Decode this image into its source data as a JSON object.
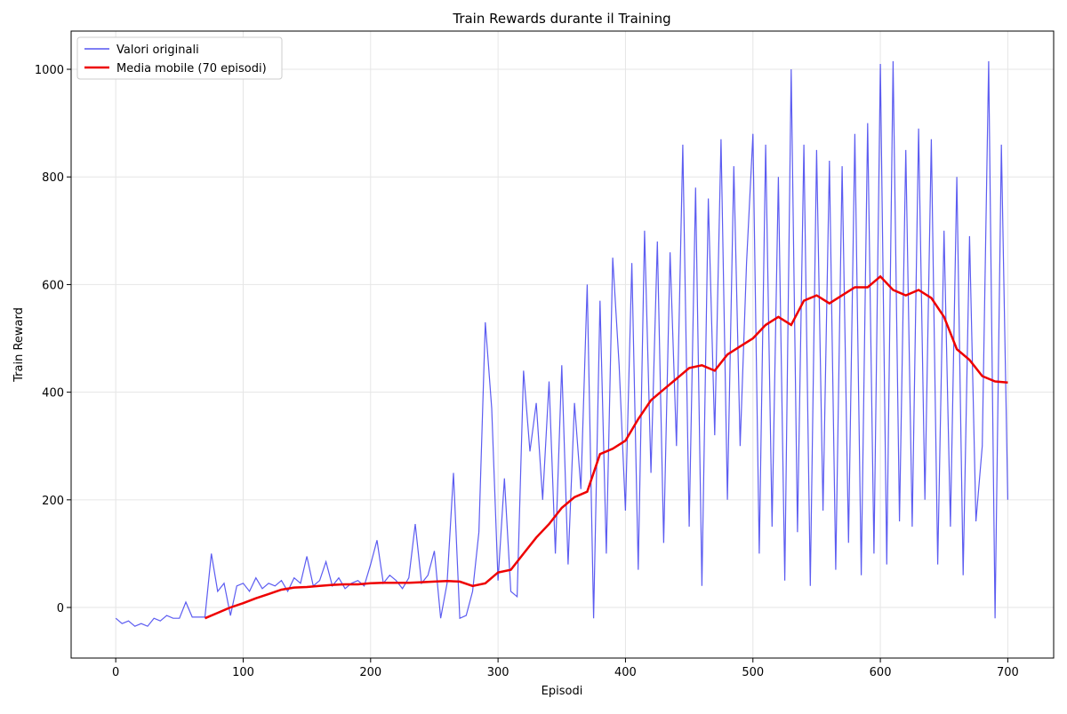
{
  "chart_data": {
    "type": "line",
    "title": "Train Rewards durante il Training",
    "xlabel": "Episodi",
    "ylabel": "Train Reward",
    "xlim": [
      -35,
      736
    ],
    "ylim": [
      -94,
      1071
    ],
    "xticks": [
      0,
      100,
      200,
      300,
      400,
      500,
      600,
      700
    ],
    "yticks": [
      0,
      200,
      400,
      600,
      800,
      1000
    ],
    "grid": true,
    "legend": "upper left",
    "series": [
      {
        "name": "Valori originali",
        "color": "#3333ee",
        "x": [
          0,
          5,
          10,
          15,
          20,
          25,
          30,
          35,
          40,
          45,
          50,
          55,
          60,
          65,
          70,
          75,
          80,
          85,
          90,
          95,
          100,
          105,
          110,
          115,
          120,
          125,
          130,
          135,
          140,
          145,
          150,
          155,
          160,
          165,
          170,
          175,
          180,
          185,
          190,
          195,
          200,
          205,
          210,
          215,
          220,
          225,
          230,
          235,
          240,
          245,
          250,
          255,
          260,
          265,
          270,
          275,
          280,
          285,
          290,
          295,
          300,
          305,
          310,
          315,
          320,
          325,
          330,
          335,
          340,
          345,
          350,
          355,
          360,
          365,
          370,
          375,
          380,
          385,
          390,
          395,
          400,
          405,
          410,
          415,
          420,
          425,
          430,
          435,
          440,
          445,
          450,
          455,
          460,
          465,
          470,
          475,
          480,
          485,
          490,
          495,
          500,
          505,
          510,
          515,
          520,
          525,
          530,
          535,
          540,
          545,
          550,
          555,
          560,
          565,
          570,
          575,
          580,
          585,
          590,
          595,
          600,
          605,
          610,
          615,
          620,
          625,
          630,
          635,
          640,
          645,
          650,
          655,
          660,
          665,
          670,
          675,
          680,
          685,
          690,
          695,
          700
        ],
        "values": [
          -20,
          -30,
          -25,
          -35,
          -30,
          -35,
          -20,
          -25,
          -15,
          -20,
          -20,
          10,
          -18,
          -18,
          -18,
          100,
          30,
          45,
          -15,
          40,
          45,
          30,
          55,
          35,
          45,
          40,
          50,
          30,
          55,
          45,
          95,
          40,
          50,
          85,
          40,
          55,
          35,
          45,
          50,
          40,
          80,
          125,
          45,
          60,
          50,
          35,
          55,
          155,
          45,
          60,
          105,
          -20,
          45,
          250,
          -20,
          -15,
          30,
          140,
          530,
          370,
          50,
          240,
          30,
          20,
          440,
          290,
          380,
          200,
          420,
          100,
          450,
          80,
          380,
          220,
          600,
          -20,
          570,
          100,
          650,
          450,
          180,
          640,
          70,
          700,
          250,
          680,
          120,
          660,
          300,
          860,
          150,
          780,
          40,
          760,
          320,
          870,
          200,
          820,
          300,
          640,
          880,
          100,
          860,
          150,
          800,
          50,
          1000,
          140,
          860,
          40,
          850,
          180,
          830,
          70,
          820,
          120,
          880,
          60,
          900,
          100,
          1010,
          80,
          1015,
          160,
          850,
          150,
          890,
          200,
          870,
          80,
          700,
          150,
          800,
          60,
          690,
          160,
          300,
          1015,
          -20,
          860,
          200
        ]
      },
      {
        "name": "Media mobile (70 episodi)",
        "color": "#ee0000",
        "x": [
          70,
          80,
          90,
          100,
          110,
          120,
          130,
          140,
          150,
          160,
          170,
          180,
          190,
          200,
          210,
          220,
          230,
          240,
          250,
          260,
          270,
          280,
          290,
          300,
          310,
          320,
          330,
          340,
          350,
          360,
          370,
          380,
          390,
          400,
          410,
          420,
          430,
          440,
          450,
          460,
          470,
          480,
          490,
          500,
          510,
          520,
          530,
          540,
          550,
          560,
          570,
          580,
          590,
          600,
          610,
          620,
          630,
          640,
          650,
          660,
          670,
          680,
          690,
          700
        ],
        "values": [
          -20,
          -10,
          0,
          8,
          17,
          25,
          33,
          37,
          38,
          40,
          42,
          43,
          43,
          45,
          46,
          46,
          46,
          47,
          48,
          49,
          48,
          40,
          45,
          65,
          70,
          100,
          130,
          155,
          185,
          205,
          215,
          285,
          295,
          310,
          350,
          385,
          405,
          425,
          445,
          450,
          440,
          470,
          485,
          500,
          525,
          540,
          525,
          570,
          580,
          565,
          580,
          595,
          595,
          615,
          590,
          580,
          590,
          575,
          540,
          480,
          460,
          430,
          420,
          418
        ]
      }
    ]
  }
}
